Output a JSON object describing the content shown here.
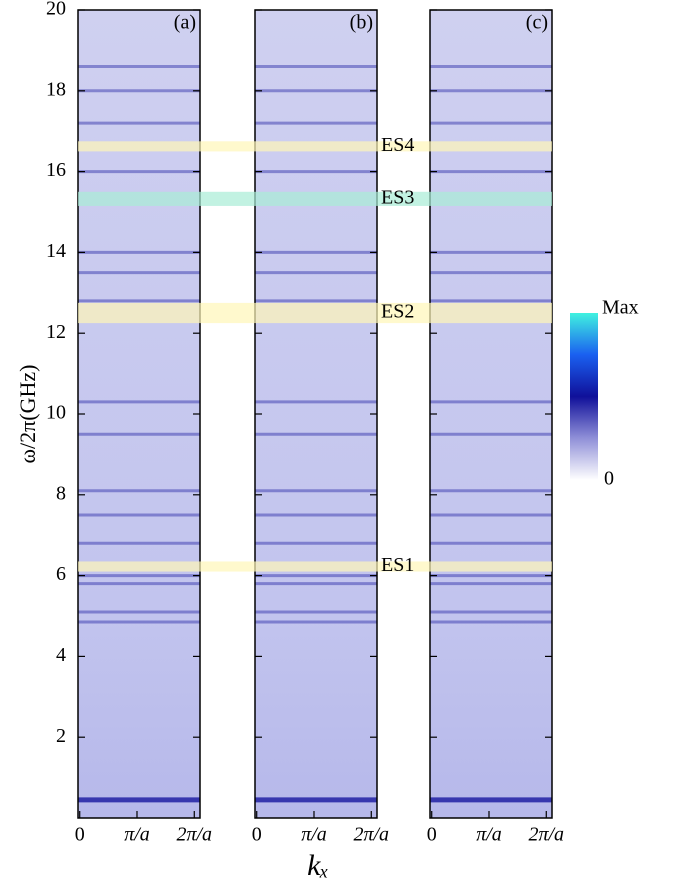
{
  "chart_data": {
    "type": "spectrum",
    "ylabel": "ω/2π(GHz)",
    "xlabel": "kₓ",
    "ylim": [
      0,
      20
    ],
    "yticks": [
      2,
      4,
      6,
      8,
      10,
      12,
      14,
      16,
      18,
      20
    ],
    "xlim": [
      -0.03,
      2.1
    ],
    "xticks": [
      0,
      {
        "value": 1,
        "label": "π/a"
      },
      {
        "value": 2,
        "label": "2π/a"
      }
    ],
    "panels": [
      {
        "label": "(a)"
      },
      {
        "label": "(b)"
      },
      {
        "label": "(c)"
      }
    ],
    "bands": [
      0.45,
      4.85,
      5.1,
      5.8,
      6.0,
      6.8,
      7.5,
      8.1,
      9.5,
      10.3,
      12.8,
      13.5,
      14.0,
      16.0,
      17.2,
      18.0,
      18.6
    ],
    "band_color": "#2a2aa8",
    "highlights": [
      {
        "label": "ES1",
        "range": [
          6.1,
          6.35
        ],
        "color": "#fff6b8"
      },
      {
        "label": "ES2",
        "range": [
          12.25,
          12.75
        ],
        "color": "#fff6b8"
      },
      {
        "label": "ES3",
        "range": [
          15.15,
          15.5
        ],
        "color": "#a8ecd6"
      },
      {
        "label": "ES4",
        "range": [
          16.5,
          16.75
        ],
        "color": "#fff6b8"
      }
    ],
    "colorbar": {
      "max_label": "Max",
      "min_label": "0",
      "colors": [
        "#ffffff",
        "#9090d8",
        "#10109a",
        "#1a60f0",
        "#40f2e0"
      ]
    }
  }
}
